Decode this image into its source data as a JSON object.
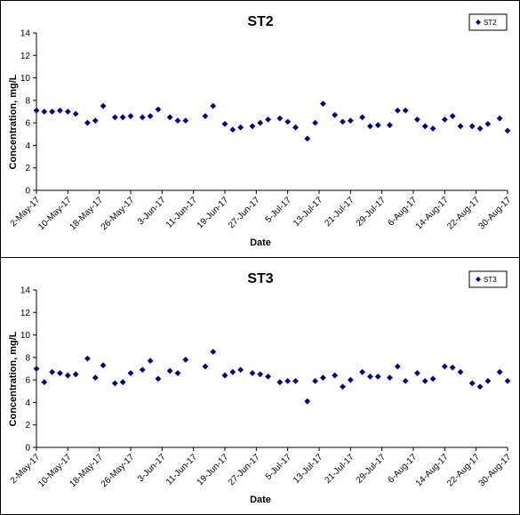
{
  "colors": {
    "marker": "#00008B",
    "axis": "#000000",
    "background": "#ffffff"
  },
  "chart_data": [
    {
      "type": "scatter",
      "title": "ST2",
      "xlabel": "Date",
      "ylabel": "Concentration, mg/L",
      "ylim": [
        0,
        14
      ],
      "yticks": [
        "0",
        "2",
        "4",
        "6",
        "8",
        "10",
        "12",
        "14"
      ],
      "xlim": [
        "2017-05-02",
        "2017-08-30"
      ],
      "xtick_labels": [
        "2-May-17",
        "10-May-17",
        "18-May-17",
        "26-May-17",
        "3-Jun-17",
        "11-Jun-17",
        "19-Jun-17",
        "27-Jun-17",
        "5-Jul-17",
        "13-Jul-17",
        "21-Jul-17",
        "29-Jul-17",
        "6-Aug-17",
        "14-Aug-17",
        "22-Aug-17",
        "30-Aug-17"
      ],
      "grid": false,
      "legend": "top-right",
      "series": [
        {
          "name": "ST2",
          "points": [
            {
              "x": "2017-05-02",
              "y": 7.1
            },
            {
              "x": "2017-05-04",
              "y": 7.0
            },
            {
              "x": "2017-05-06",
              "y": 7.0
            },
            {
              "x": "2017-05-08",
              "y": 7.1
            },
            {
              "x": "2017-05-10",
              "y": 7.0
            },
            {
              "x": "2017-05-12",
              "y": 6.8
            },
            {
              "x": "2017-05-15",
              "y": 6.0
            },
            {
              "x": "2017-05-17",
              "y": 6.2
            },
            {
              "x": "2017-05-19",
              "y": 7.5
            },
            {
              "x": "2017-05-22",
              "y": 6.5
            },
            {
              "x": "2017-05-24",
              "y": 6.5
            },
            {
              "x": "2017-05-26",
              "y": 6.6
            },
            {
              "x": "2017-05-29",
              "y": 6.5
            },
            {
              "x": "2017-05-31",
              "y": 6.6
            },
            {
              "x": "2017-06-02",
              "y": 7.2
            },
            {
              "x": "2017-06-05",
              "y": 6.5
            },
            {
              "x": "2017-06-07",
              "y": 6.2
            },
            {
              "x": "2017-06-09",
              "y": 6.2
            },
            {
              "x": "2017-06-14",
              "y": 6.6
            },
            {
              "x": "2017-06-16",
              "y": 7.5
            },
            {
              "x": "2017-06-19",
              "y": 5.9
            },
            {
              "x": "2017-06-21",
              "y": 5.4
            },
            {
              "x": "2017-06-23",
              "y": 5.6
            },
            {
              "x": "2017-06-26",
              "y": 5.7
            },
            {
              "x": "2017-06-28",
              "y": 6.0
            },
            {
              "x": "2017-06-30",
              "y": 6.3
            },
            {
              "x": "2017-07-03",
              "y": 6.4
            },
            {
              "x": "2017-07-05",
              "y": 6.1
            },
            {
              "x": "2017-07-07",
              "y": 5.6
            },
            {
              "x": "2017-07-10",
              "y": 4.6
            },
            {
              "x": "2017-07-12",
              "y": 6.0
            },
            {
              "x": "2017-07-14",
              "y": 7.7
            },
            {
              "x": "2017-07-17",
              "y": 6.7
            },
            {
              "x": "2017-07-19",
              "y": 6.1
            },
            {
              "x": "2017-07-21",
              "y": 6.2
            },
            {
              "x": "2017-07-24",
              "y": 6.5
            },
            {
              "x": "2017-07-26",
              "y": 5.7
            },
            {
              "x": "2017-07-28",
              "y": 5.8
            },
            {
              "x": "2017-07-31",
              "y": 5.8
            },
            {
              "x": "2017-08-02",
              "y": 7.1
            },
            {
              "x": "2017-08-04",
              "y": 7.1
            },
            {
              "x": "2017-08-07",
              "y": 6.3
            },
            {
              "x": "2017-08-09",
              "y": 5.7
            },
            {
              "x": "2017-08-11",
              "y": 5.5
            },
            {
              "x": "2017-08-14",
              "y": 6.3
            },
            {
              "x": "2017-08-16",
              "y": 6.6
            },
            {
              "x": "2017-08-18",
              "y": 5.7
            },
            {
              "x": "2017-08-21",
              "y": 5.7
            },
            {
              "x": "2017-08-23",
              "y": 5.5
            },
            {
              "x": "2017-08-25",
              "y": 5.9
            },
            {
              "x": "2017-08-28",
              "y": 6.4
            },
            {
              "x": "2017-08-30",
              "y": 5.3
            }
          ]
        }
      ]
    },
    {
      "type": "scatter",
      "title": "ST3",
      "xlabel": "Date",
      "ylabel": "Concentration, mg/L",
      "ylim": [
        0,
        14
      ],
      "yticks": [
        "0",
        "2",
        "4",
        "6",
        "8",
        "10",
        "12",
        "14"
      ],
      "xlim": [
        "2017-05-02",
        "2017-08-30"
      ],
      "xtick_labels": [
        "2-May-17",
        "10-May-17",
        "18-May-17",
        "26-May-17",
        "3-Jun-17",
        "11-Jun-17",
        "19-Jun-17",
        "27-Jun-17",
        "5-Jul-17",
        "13-Jul-17",
        "21-Jul-17",
        "29-Jul-17",
        "6-Aug-17",
        "14-Aug-17",
        "22-Aug-17",
        "30-Aug-17"
      ],
      "grid": false,
      "legend": "top-right",
      "series": [
        {
          "name": "ST3",
          "points": [
            {
              "x": "2017-05-02",
              "y": 7.0
            },
            {
              "x": "2017-05-04",
              "y": 5.8
            },
            {
              "x": "2017-05-06",
              "y": 6.7
            },
            {
              "x": "2017-05-08",
              "y": 6.6
            },
            {
              "x": "2017-05-10",
              "y": 6.4
            },
            {
              "x": "2017-05-12",
              "y": 6.5
            },
            {
              "x": "2017-05-15",
              "y": 7.9
            },
            {
              "x": "2017-05-17",
              "y": 6.2
            },
            {
              "x": "2017-05-19",
              "y": 7.3
            },
            {
              "x": "2017-05-22",
              "y": 5.7
            },
            {
              "x": "2017-05-24",
              "y": 5.8
            },
            {
              "x": "2017-05-26",
              "y": 6.6
            },
            {
              "x": "2017-05-29",
              "y": 6.9
            },
            {
              "x": "2017-05-31",
              "y": 7.7
            },
            {
              "x": "2017-06-02",
              "y": 6.1
            },
            {
              "x": "2017-06-05",
              "y": 6.8
            },
            {
              "x": "2017-06-07",
              "y": 6.6
            },
            {
              "x": "2017-06-09",
              "y": 7.8
            },
            {
              "x": "2017-06-14",
              "y": 7.2
            },
            {
              "x": "2017-06-16",
              "y": 8.5
            },
            {
              "x": "2017-06-19",
              "y": 6.4
            },
            {
              "x": "2017-06-21",
              "y": 6.7
            },
            {
              "x": "2017-06-23",
              "y": 6.9
            },
            {
              "x": "2017-06-26",
              "y": 6.6
            },
            {
              "x": "2017-06-28",
              "y": 6.5
            },
            {
              "x": "2017-06-30",
              "y": 6.3
            },
            {
              "x": "2017-07-03",
              "y": 5.8
            },
            {
              "x": "2017-07-05",
              "y": 5.9
            },
            {
              "x": "2017-07-07",
              "y": 5.9
            },
            {
              "x": "2017-07-10",
              "y": 4.1
            },
            {
              "x": "2017-07-12",
              "y": 5.9
            },
            {
              "x": "2017-07-14",
              "y": 6.2
            },
            {
              "x": "2017-07-17",
              "y": 6.4
            },
            {
              "x": "2017-07-19",
              "y": 5.4
            },
            {
              "x": "2017-07-21",
              "y": 6.0
            },
            {
              "x": "2017-07-24",
              "y": 6.7
            },
            {
              "x": "2017-07-26",
              "y": 6.3
            },
            {
              "x": "2017-07-28",
              "y": 6.3
            },
            {
              "x": "2017-07-31",
              "y": 6.2
            },
            {
              "x": "2017-08-02",
              "y": 7.2
            },
            {
              "x": "2017-08-04",
              "y": 5.9
            },
            {
              "x": "2017-08-07",
              "y": 6.6
            },
            {
              "x": "2017-08-09",
              "y": 5.9
            },
            {
              "x": "2017-08-11",
              "y": 6.1
            },
            {
              "x": "2017-08-14",
              "y": 7.2
            },
            {
              "x": "2017-08-16",
              "y": 7.1
            },
            {
              "x": "2017-08-18",
              "y": 6.7
            },
            {
              "x": "2017-08-21",
              "y": 5.7
            },
            {
              "x": "2017-08-23",
              "y": 5.4
            },
            {
              "x": "2017-08-25",
              "y": 5.9
            },
            {
              "x": "2017-08-28",
              "y": 6.7
            },
            {
              "x": "2017-08-30",
              "y": 5.9
            }
          ]
        }
      ]
    }
  ]
}
